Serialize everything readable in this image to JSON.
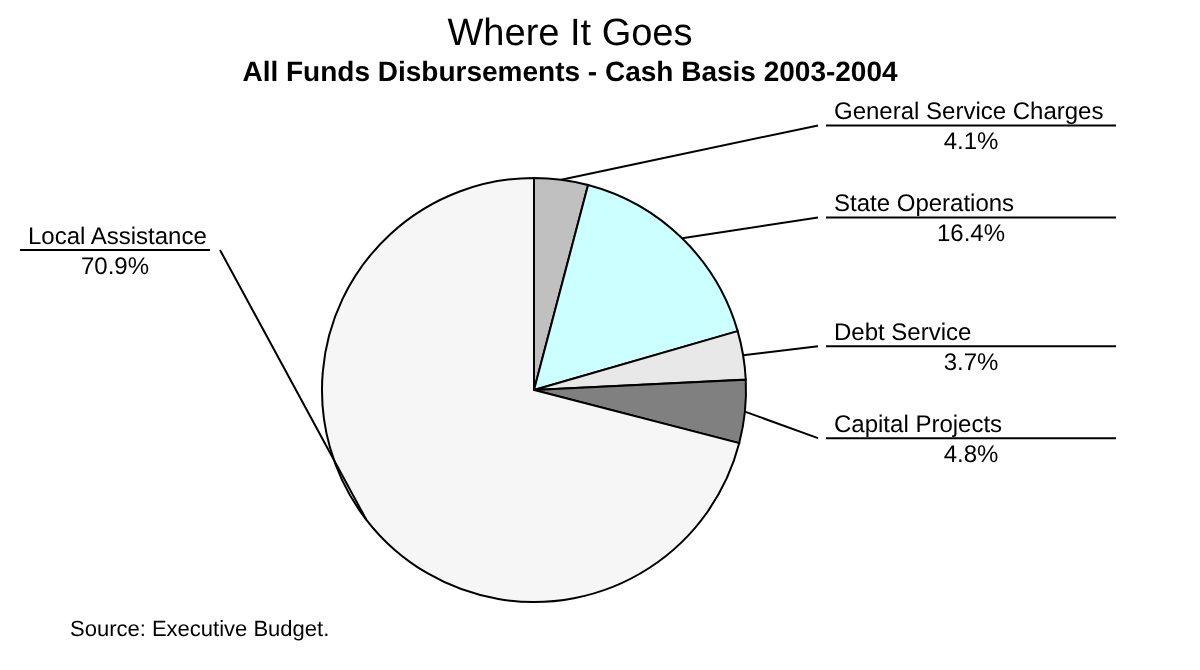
{
  "chart_data": {
    "type": "pie",
    "title": "Where It Goes",
    "subtitle": "All Funds Disbursements - Cash Basis 2003-2004",
    "categories": [
      "General Service Charges",
      "State Operations",
      "Debt Service",
      "Capital Projects",
      "Local Assistance"
    ],
    "values": [
      4.1,
      16.4,
      3.7,
      4.8,
      70.9
    ],
    "value_labels": [
      "4.1%",
      "16.4%",
      "3.7%",
      "4.8%",
      "70.9%"
    ],
    "colors": [
      "#c0c0c0",
      "#ccffff",
      "#e8e8e8",
      "#808080",
      "#f6f6f6"
    ],
    "legend": false,
    "annotations": [
      "Source:  Executive Budget."
    ]
  }
}
